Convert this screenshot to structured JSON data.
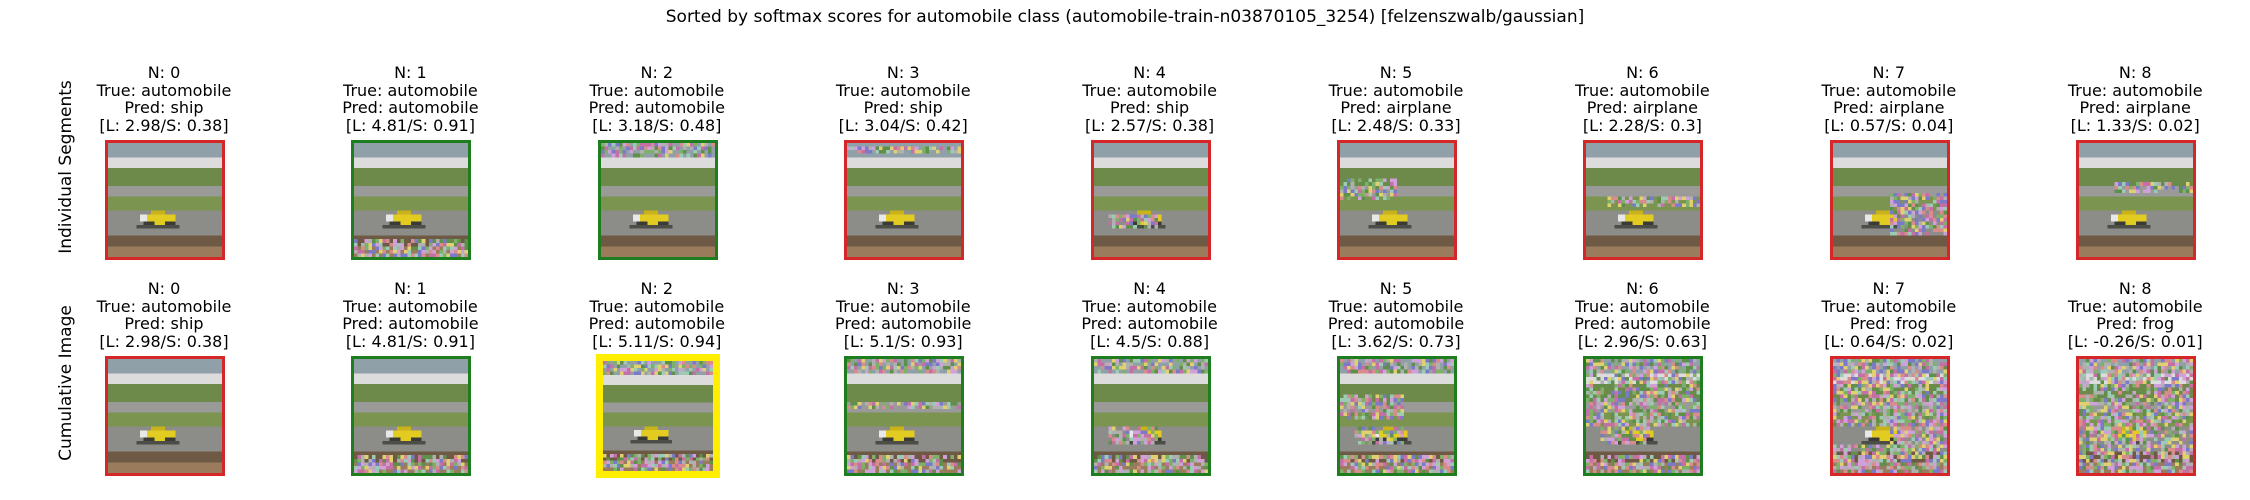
{
  "title": "Sorted by softmax scores for automobile class (automobile-train-n03870105_3254) [felzenszwalb/gaussian]",
  "colors": {
    "wrong": "#d62728",
    "correct": "#1e7d1e",
    "best": "#ffee00"
  },
  "rows": [
    {
      "label": "Individual Segments",
      "cells": [
        {
          "n": "N: 0",
          "true": "True: automobile",
          "pred": "Pred: ship",
          "score": "[L: 2.98/S: 0.38]",
          "status": "wrong",
          "noise": "none"
        },
        {
          "n": "N: 1",
          "true": "True: automobile",
          "pred": "Pred: automobile",
          "score": "[L: 4.81/S: 0.91]",
          "status": "correct",
          "noise": "bottom"
        },
        {
          "n": "N: 2",
          "true": "True: automobile",
          "pred": "Pred: automobile",
          "score": "[L: 3.18/S: 0.48]",
          "status": "correct",
          "noise": "top"
        },
        {
          "n": "N: 3",
          "true": "True: automobile",
          "pred": "Pred: ship",
          "score": "[L: 3.04/S: 0.42]",
          "status": "wrong",
          "noise": "upper"
        },
        {
          "n": "N: 4",
          "true": "True: automobile",
          "pred": "Pred: ship",
          "score": "[L: 2.57/S: 0.38]",
          "status": "wrong",
          "noise": "car"
        },
        {
          "n": "N: 5",
          "true": "True: automobile",
          "pred": "Pred: airplane",
          "score": "[L: 2.48/S: 0.33]",
          "status": "wrong",
          "noise": "road"
        },
        {
          "n": "N: 6",
          "true": "True: automobile",
          "pred": "Pred: airplane",
          "score": "[L: 2.28/S: 0.3]",
          "status": "wrong",
          "noise": "middle"
        },
        {
          "n": "N: 7",
          "true": "True: automobile",
          "pred": "Pred: airplane",
          "score": "[L: 0.57/S: 0.04]",
          "status": "wrong",
          "noise": "right"
        },
        {
          "n": "N: 8",
          "true": "True: automobile",
          "pred": "Pred: airplane",
          "score": "[L: 1.33/S: 0.02]",
          "status": "wrong",
          "noise": "stripe"
        }
      ]
    },
    {
      "label": "Cumulative Image",
      "cells": [
        {
          "n": "N: 0",
          "true": "True: automobile",
          "pred": "Pred: ship",
          "score": "[L: 2.98/S: 0.38]",
          "status": "wrong",
          "noise": "none"
        },
        {
          "n": "N: 1",
          "true": "True: automobile",
          "pred": "Pred: automobile",
          "score": "[L: 4.81/S: 0.91]",
          "status": "correct",
          "noise": "bottom"
        },
        {
          "n": "N: 2",
          "true": "True: automobile",
          "pred": "Pred: automobile",
          "score": "[L: 5.11/S: 0.94]",
          "status": "best",
          "noise": "cum2"
        },
        {
          "n": "N: 3",
          "true": "True: automobile",
          "pred": "Pred: automobile",
          "score": "[L: 5.1/S: 0.93]",
          "status": "correct",
          "noise": "cum3"
        },
        {
          "n": "N: 4",
          "true": "True: automobile",
          "pred": "Pred: automobile",
          "score": "[L: 4.5/S: 0.88]",
          "status": "correct",
          "noise": "cum4"
        },
        {
          "n": "N: 5",
          "true": "True: automobile",
          "pred": "Pred: automobile",
          "score": "[L: 3.62/S: 0.73]",
          "status": "correct",
          "noise": "cum5"
        },
        {
          "n": "N: 6",
          "true": "True: automobile",
          "pred": "Pred: automobile",
          "score": "[L: 2.96/S: 0.63]",
          "status": "correct",
          "noise": "cum6"
        },
        {
          "n": "N: 7",
          "true": "True: automobile",
          "pred": "Pred: frog",
          "score": "[L: 0.64/S: 0.02]",
          "status": "wrong",
          "noise": "cum7"
        },
        {
          "n": "N: 8",
          "true": "True: automobile",
          "pred": "Pred: frog",
          "score": "[L: -0.26/S: 0.01]",
          "status": "wrong",
          "noise": "cum8"
        }
      ]
    }
  ]
}
